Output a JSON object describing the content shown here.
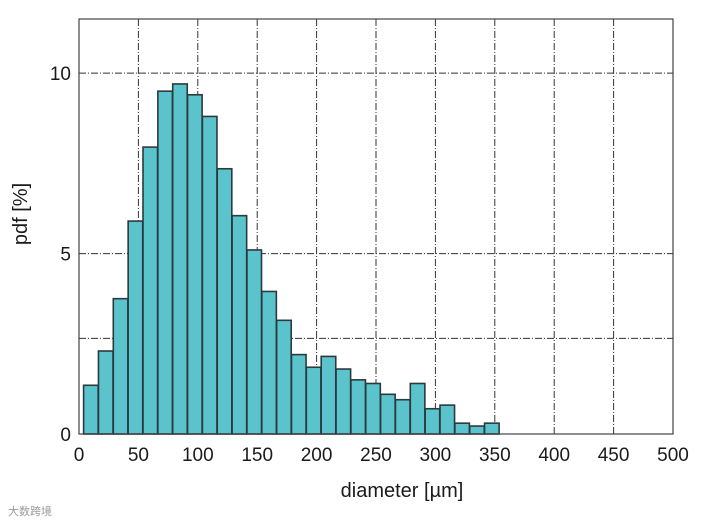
{
  "chart_data": {
    "type": "bar",
    "title": "",
    "xlabel": "diameter [µm]",
    "ylabel": "pdf [%]",
    "xlim": [
      0,
      500
    ],
    "ylim": [
      0,
      11.5
    ],
    "x_ticks": [
      "0",
      "50",
      "100",
      "150",
      "200",
      "250",
      "300",
      "350",
      "400",
      "450",
      "500"
    ],
    "y_ticks": [
      "0",
      "5",
      "10"
    ],
    "grid": true,
    "bar_color": "#5bc3cc",
    "edge_color": "#2b3a3e",
    "series": [
      {
        "x": [
          10,
          22.5,
          35,
          47.5,
          60,
          72.5,
          85,
          97.5,
          110,
          122.5,
          135,
          147.5,
          160,
          172.5,
          185,
          197.5,
          210,
          222.5,
          235,
          247.5,
          260,
          272.5,
          285,
          297.5,
          310,
          322.5,
          335,
          347.5
        ],
        "values": [
          1.35,
          2.3,
          3.75,
          5.9,
          7.95,
          9.5,
          9.7,
          9.4,
          8.8,
          7.35,
          6.05,
          5.1,
          3.95,
          3.15,
          2.2,
          1.85,
          2.15,
          1.8,
          1.5,
          1.4,
          1.1,
          0.95,
          1.4,
          0.7,
          0.8,
          0.3,
          0.22,
          0.3
        ]
      }
    ]
  },
  "watermark": "大数跨境"
}
